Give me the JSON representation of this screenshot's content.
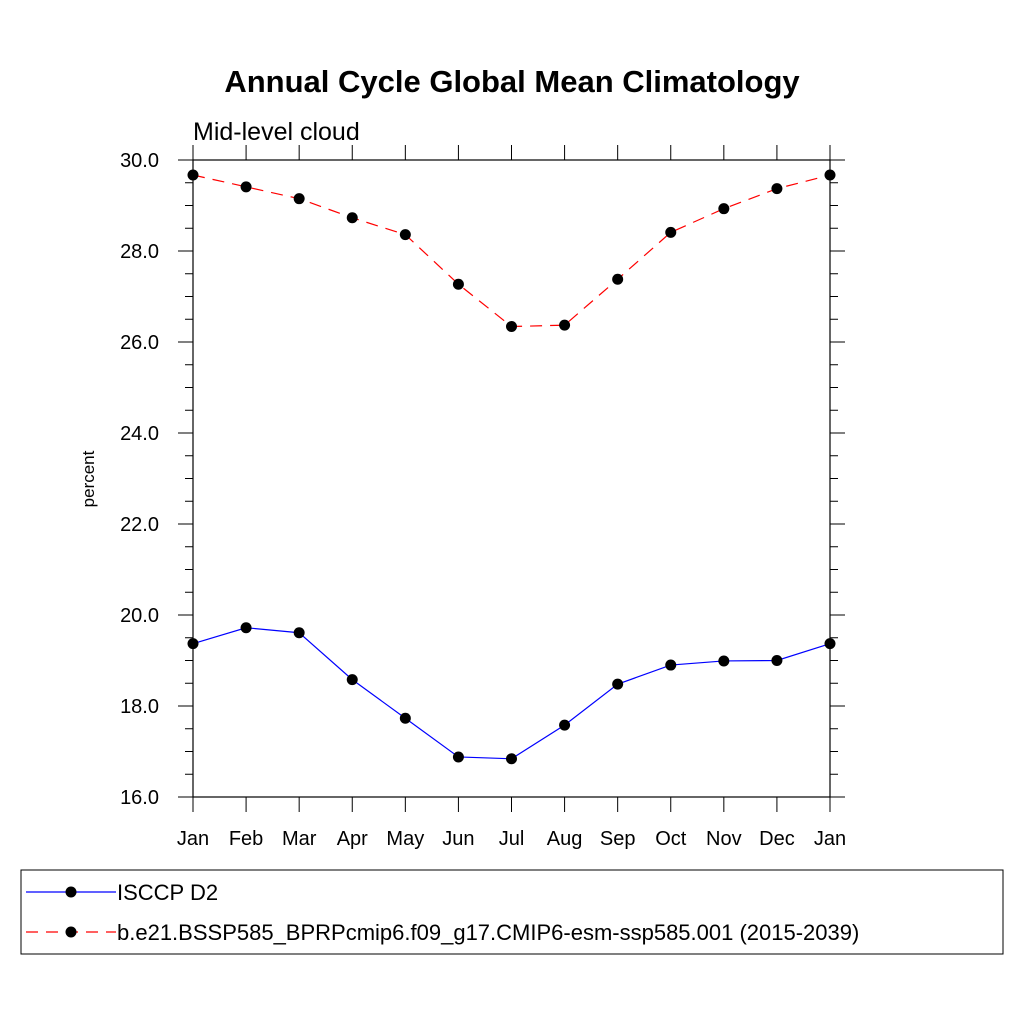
{
  "chart_data": {
    "type": "line",
    "title": "Annual Cycle Global Mean Climatology",
    "subtitle": "Mid-level cloud",
    "xlabel": "",
    "ylabel": "percent",
    "categories": [
      "Jan",
      "Feb",
      "Mar",
      "Apr",
      "May",
      "Jun",
      "Jul",
      "Aug",
      "Sep",
      "Oct",
      "Nov",
      "Dec",
      "Jan"
    ],
    "ylim": [
      16.0,
      30.0
    ],
    "yticks": [
      "16.0",
      "18.0",
      "20.0",
      "22.0",
      "24.0",
      "26.0",
      "28.0",
      "30.0"
    ],
    "grid": false,
    "legend_position": "bottom",
    "series": [
      {
        "name": "ISCCP D2",
        "color": "#0000ff",
        "line_style": "solid",
        "marker": "filled-circle",
        "values": [
          19.37,
          19.72,
          19.61,
          18.58,
          17.73,
          16.88,
          16.84,
          17.58,
          18.48,
          18.9,
          18.99,
          19.0,
          19.37
        ]
      },
      {
        "name": "b.e21.BSSP585_BPRPcmip6.f09_g17.CMIP6-esm-ssp585.001 (2015-2039)",
        "color": "#ff0000",
        "line_style": "dashed",
        "marker": "filled-circle",
        "values": [
          29.67,
          29.41,
          29.15,
          28.73,
          28.36,
          27.27,
          26.34,
          26.37,
          27.38,
          28.41,
          28.93,
          29.37,
          29.67
        ]
      }
    ]
  }
}
